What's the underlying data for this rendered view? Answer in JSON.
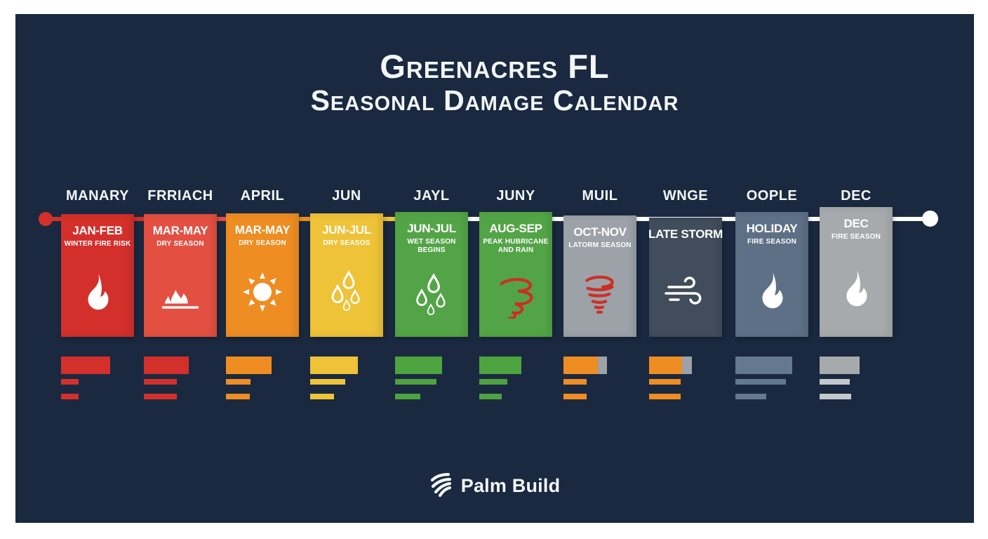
{
  "title": {
    "line1": "Greenacres FL",
    "line2": "Seasonal Damage Calendar"
  },
  "timeline": {
    "months": [
      "MANARY",
      "FRRIACH",
      "APRIL",
      "JUN",
      "JAYL",
      "JUNY",
      "MUIL",
      "WNGE",
      "OOPLE",
      "DEC"
    ]
  },
  "cards": [
    {
      "period": "JAN-FEB",
      "label": "WINTER FIRE RISK",
      "color": "#d3302c",
      "icon": "flame-icon"
    },
    {
      "period": "MAR-MAY",
      "label": "DRY SEASON",
      "color": "#e35041",
      "icon": "brush-fire-icon"
    },
    {
      "period": "MAR-MAY",
      "label": "DRY SEASON",
      "color": "#ee8d22",
      "icon": "sun-icon"
    },
    {
      "period": "JUN-JUL",
      "label": "DRY SEASOS",
      "color": "#eec338",
      "icon": "raindrops-icon"
    },
    {
      "period": "JUN-JUL",
      "label": "WET SEASON BEGINS",
      "color": "#53a447",
      "icon": "raindrops-icon"
    },
    {
      "period": "AUG-SEP",
      "label": "PEAK HUBRICANE AND RAIN",
      "color": "#53a447",
      "icon": "hurricane-icon"
    },
    {
      "period": "OCT-NOV",
      "label": "LATORM SEASON",
      "color": "#9ca2a8",
      "icon": "tornado-icon"
    },
    {
      "period": "LATE STORM",
      "label": "",
      "color": "#414c5c",
      "icon": "wind-icon"
    },
    {
      "period": "HOLIDAY",
      "label": "FIRE SEASON",
      "color": "#5e7085",
      "icon": "flame-icon"
    },
    {
      "period": "DEC",
      "label": "FIRE SEASON",
      "color": "#a7aaac",
      "icon": "flame-icon"
    }
  ],
  "bars": [
    {
      "color": "#d3302c",
      "main": 70,
      "tail": 0,
      "tail_color": null,
      "line_color": "#d3302c",
      "line1": 25,
      "line2": 25
    },
    {
      "color": "#d3302c",
      "main": 64,
      "tail": 0,
      "tail_color": null,
      "line_color": "#d3302c",
      "line1": 47,
      "line2": 47
    },
    {
      "color": "#ee8d22",
      "main": 65,
      "tail": 0,
      "tail_color": null,
      "line_color": "#ee8d22",
      "line1": 35,
      "line2": 34
    },
    {
      "color": "#eec338",
      "main": 68,
      "tail": 0,
      "tail_color": null,
      "line_color": "#eec338",
      "line1": 50,
      "line2": 34
    },
    {
      "color": "#4da33f",
      "main": 67,
      "tail": 0,
      "tail_color": null,
      "line_color": "#4da33f",
      "line1": 59,
      "line2": 36
    },
    {
      "color": "#4da33f",
      "main": 60,
      "tail": 0,
      "tail_color": null,
      "line_color": "#4da33f",
      "line1": 40,
      "line2": 32
    },
    {
      "color": "#ee8d22",
      "main": 49,
      "tail": 13,
      "tail_color": "#9ca2a8",
      "line_color": "#ee8d22",
      "line1": 33,
      "line2": 33
    },
    {
      "color": "#ee8d22",
      "main": 47,
      "tail": 14,
      "tail_color": "#9ca2a8",
      "line_color": "#ee8d22",
      "line1": 45,
      "line2": 45
    },
    {
      "color": "#64788e",
      "main": 81,
      "tail": 0,
      "tail_color": null,
      "line_color": "#64788e",
      "line1": 72,
      "line2": 44
    },
    {
      "color": "#a7aaac",
      "main": 57,
      "tail": 0,
      "tail_color": null,
      "line_color": "#c3c8cd",
      "line1": 43,
      "line2": 45
    }
  ],
  "footer": {
    "brand": "Palm Build"
  },
  "palette": {
    "page_background": "#ffffff",
    "panel_background": "#1a2940",
    "text": "#f3f6f8",
    "timeline_white": "#ffffff",
    "accent_red": "#d3302c",
    "accent_orangered": "#e35041",
    "accent_orange": "#ee8d22",
    "accent_yellow": "#eec338",
    "accent_green": "#53a447",
    "accent_gray": "#9ca2a8",
    "accent_slate": "#414c5c",
    "accent_slateblue": "#5e7085",
    "hurricane_red": "#cf2d23"
  }
}
